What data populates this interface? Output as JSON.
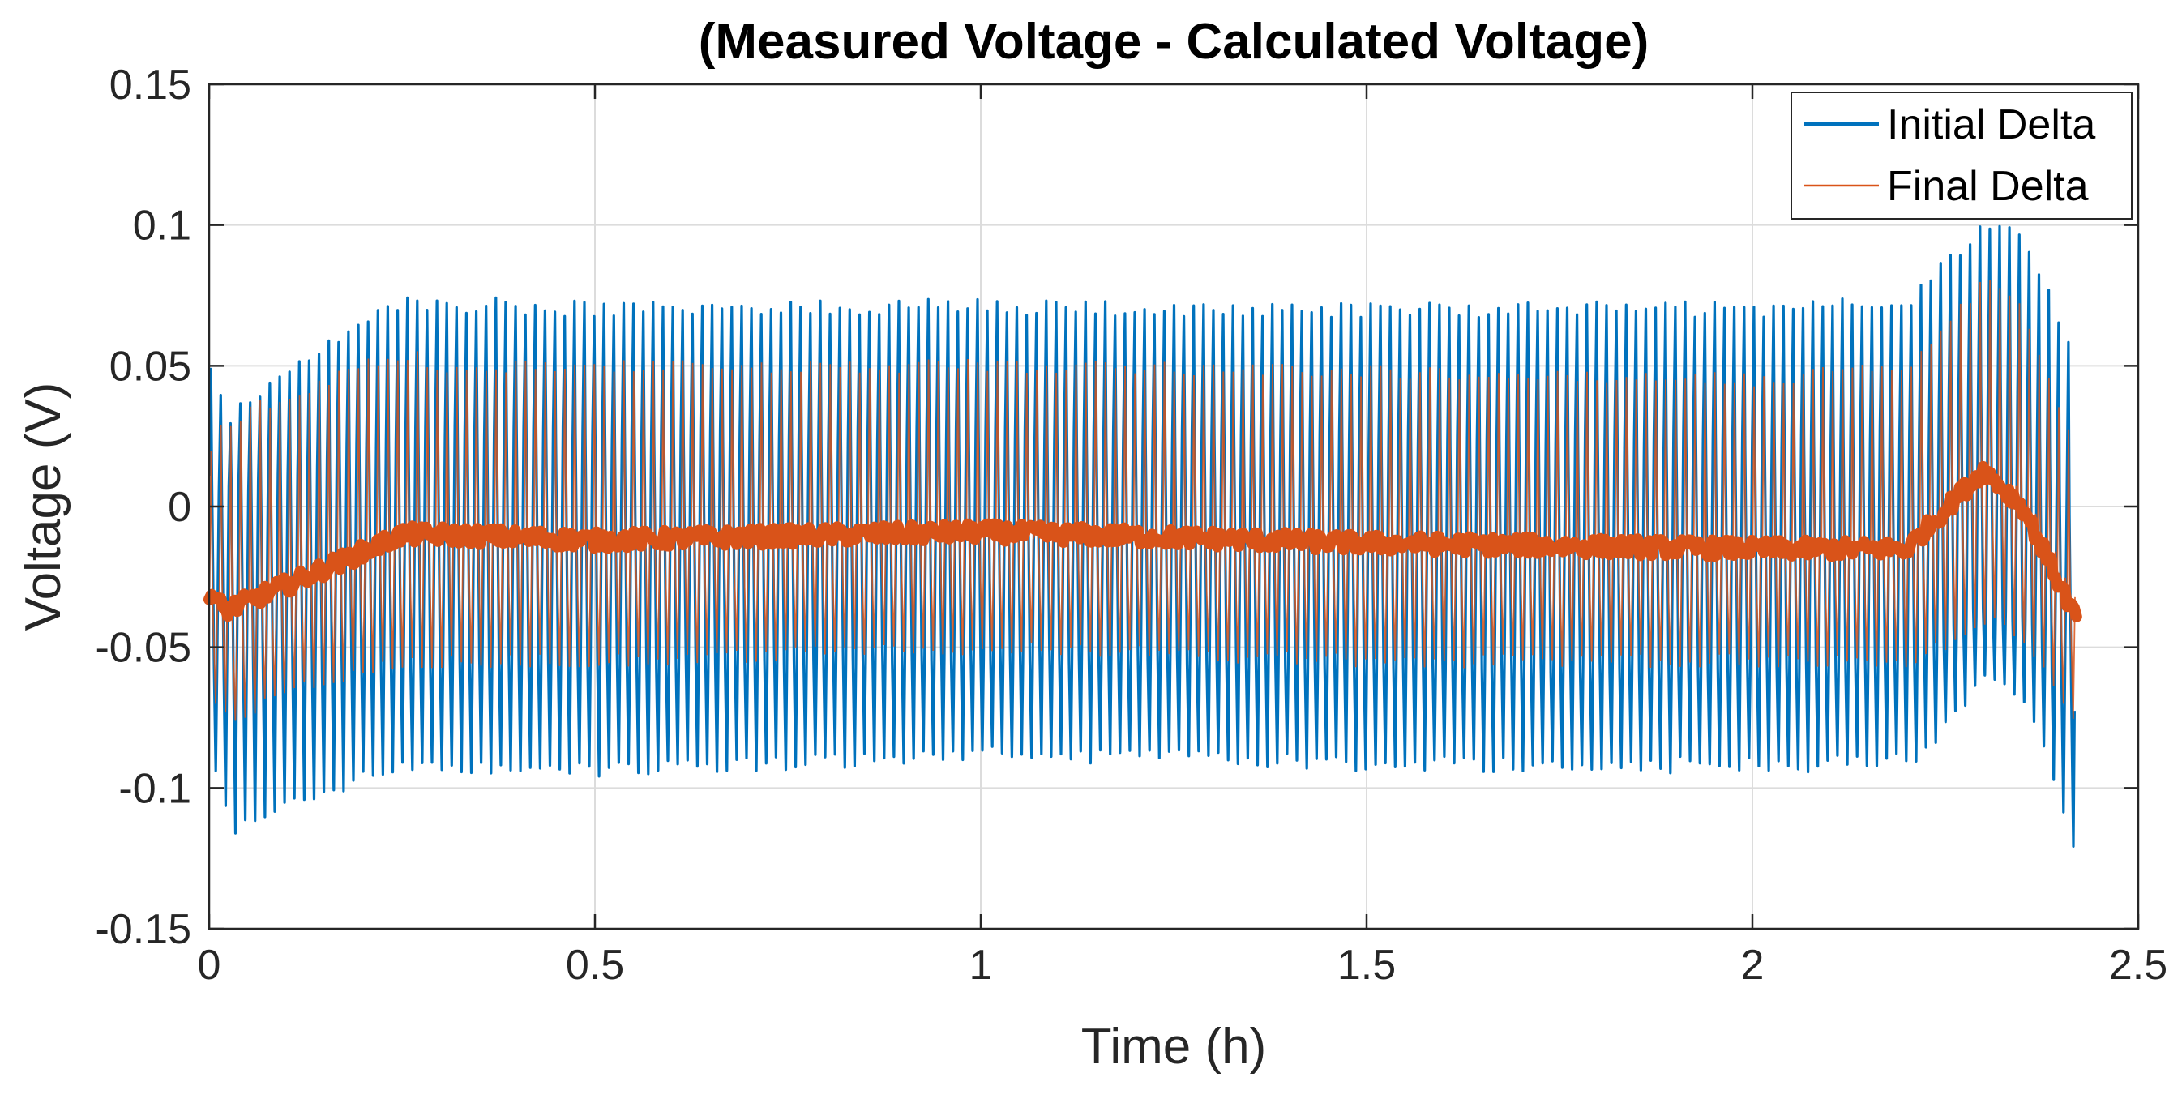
{
  "chart_data": {
    "type": "line",
    "title": "(Measured Voltage - Calculated Voltage)",
    "xlabel": "Time (h)",
    "ylabel": "Voltage (V)",
    "xlim": [
      0,
      2.5
    ],
    "ylim": [
      -0.15,
      0.15
    ],
    "xticks": [
      0,
      0.5,
      1,
      1.5,
      2,
      2.5
    ],
    "xtick_labels": [
      "0",
      "0.5",
      "1",
      "1.5",
      "2",
      "2.5"
    ],
    "yticks": [
      -0.15,
      -0.1,
      -0.05,
      0,
      0.05,
      0.1,
      0.15
    ],
    "ytick_labels": [
      "-0.15",
      "-0.1",
      "-0.05",
      "0",
      "0.05",
      "0.1",
      "0.15"
    ],
    "grid": true,
    "legend_position": "top-right",
    "x_end": 2.42,
    "pulse_count": 190,
    "series": [
      {
        "name": "Initial Delta",
        "color": "#0072BD",
        "envelope": {
          "t": [
            0,
            0.02,
            0.1,
            0.25,
            0.3,
            0.5,
            1.0,
            1.5,
            2.0,
            2.2,
            2.3,
            2.35,
            2.42
          ],
          "upper": [
            0.05,
            0.03,
            0.05,
            0.072,
            0.072,
            0.07,
            0.071,
            0.07,
            0.07,
            0.072,
            0.1,
            0.095,
            0.05
          ],
          "lower": [
            -0.095,
            -0.115,
            -0.105,
            -0.092,
            -0.092,
            -0.093,
            -0.088,
            -0.091,
            -0.092,
            -0.09,
            -0.06,
            -0.07,
            -0.135
          ],
          "mid_upper": [
            0.01,
            0.005,
            0.01,
            0.027,
            0.027,
            0.025,
            0.025,
            0.024,
            0.023,
            0.025,
            0.045,
            0.04,
            -0.01
          ],
          "mid_lower": [
            -0.06,
            -0.065,
            -0.06,
            -0.055,
            -0.055,
            -0.055,
            -0.052,
            -0.055,
            -0.057,
            -0.055,
            -0.035,
            -0.04,
            -0.08
          ]
        }
      },
      {
        "name": "Final Delta",
        "color": "#D95319",
        "envelope": {
          "t": [
            0,
            0.02,
            0.1,
            0.25,
            0.3,
            0.5,
            1.0,
            1.5,
            2.0,
            2.2,
            2.3,
            2.35,
            2.42
          ],
          "upper": [
            0.02,
            0.03,
            0.04,
            0.055,
            0.05,
            0.05,
            0.05,
            0.048,
            0.045,
            0.05,
            0.08,
            0.07,
            0.02
          ],
          "lower": [
            -0.07,
            -0.075,
            -0.065,
            -0.055,
            -0.055,
            -0.055,
            -0.05,
            -0.055,
            -0.055,
            -0.055,
            -0.04,
            -0.05,
            -0.08
          ],
          "mean": [
            -0.03,
            -0.037,
            -0.028,
            -0.01,
            -0.01,
            -0.012,
            -0.009,
            -0.013,
            -0.015,
            -0.015,
            0.013,
            0.0,
            -0.04
          ]
        }
      }
    ]
  }
}
